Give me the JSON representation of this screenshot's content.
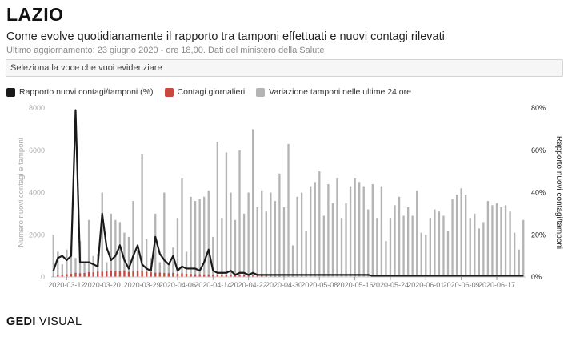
{
  "header": {
    "title": "LAZIO",
    "subtitle": "Come evolve quotidianamente il rapporto tra tamponi effettuati e nuovi contagi rilevati",
    "updated": "Ultimo aggiornamento: 23 giugno 2020 - ore 18,00. Dati del ministero della Salute"
  },
  "selector": {
    "placeholder": "Seleziona la voce che vuoi evidenziare"
  },
  "brand": {
    "strong": "GEDI",
    "light": " VISUAL"
  },
  "colors": {
    "line": "#1a1a1a",
    "contagi": "#c9473f",
    "tamponi": "#b4b4b4",
    "axis": "#999999"
  },
  "chart_data": {
    "type": "bar",
    "legend_position": "top-left",
    "grid": false,
    "dates": [
      "2020-03-09",
      "2020-03-10",
      "2020-03-11",
      "2020-03-12",
      "2020-03-13",
      "2020-03-14",
      "2020-03-15",
      "2020-03-16",
      "2020-03-17",
      "2020-03-18",
      "2020-03-19",
      "2020-03-20",
      "2020-03-21",
      "2020-03-22",
      "2020-03-23",
      "2020-03-24",
      "2020-03-25",
      "2020-03-26",
      "2020-03-27",
      "2020-03-28",
      "2020-03-29",
      "2020-03-30",
      "2020-03-31",
      "2020-04-01",
      "2020-04-02",
      "2020-04-03",
      "2020-04-04",
      "2020-04-05",
      "2020-04-06",
      "2020-04-07",
      "2020-04-08",
      "2020-04-09",
      "2020-04-10",
      "2020-04-11",
      "2020-04-12",
      "2020-04-13",
      "2020-04-14",
      "2020-04-15",
      "2020-04-16",
      "2020-04-17",
      "2020-04-18",
      "2020-04-19",
      "2020-04-20",
      "2020-04-21",
      "2020-04-22",
      "2020-04-23",
      "2020-04-24",
      "2020-04-25",
      "2020-04-26",
      "2020-04-27",
      "2020-04-28",
      "2020-04-29",
      "2020-04-30",
      "2020-05-01",
      "2020-05-02",
      "2020-05-03",
      "2020-05-04",
      "2020-05-05",
      "2020-05-06",
      "2020-05-07",
      "2020-05-08",
      "2020-05-09",
      "2020-05-10",
      "2020-05-11",
      "2020-05-12",
      "2020-05-13",
      "2020-05-14",
      "2020-05-15",
      "2020-05-16",
      "2020-05-17",
      "2020-05-18",
      "2020-05-19",
      "2020-05-20",
      "2020-05-21",
      "2020-05-22",
      "2020-05-23",
      "2020-05-24",
      "2020-05-25",
      "2020-05-26",
      "2020-05-27",
      "2020-05-28",
      "2020-05-29",
      "2020-05-30",
      "2020-05-31",
      "2020-06-01",
      "2020-06-02",
      "2020-06-03",
      "2020-06-04",
      "2020-06-05",
      "2020-06-06",
      "2020-06-07",
      "2020-06-08",
      "2020-06-09",
      "2020-06-10",
      "2020-06-11",
      "2020-06-12",
      "2020-06-13",
      "2020-06-14",
      "2020-06-15",
      "2020-06-16",
      "2020-06-17",
      "2020-06-18",
      "2020-06-19",
      "2020-06-20",
      "2020-06-21",
      "2020-06-22",
      "2020-06-23"
    ],
    "x_ticks": [
      "2020-03-12",
      "2020-03-20",
      "2020-03-29",
      "2020-04-06",
      "2020-04-14",
      "2020-04-22",
      "2020-04-30",
      "2020-05-08",
      "2020-05-16",
      "2020-05-24",
      "2020-06-01",
      "2020-06-09",
      "2020-06-17"
    ],
    "y_left": {
      "label": "Numero nuovi contagi e tamponi",
      "min": 0,
      "max": 8000,
      "ticks": [
        "0",
        "2000",
        "4000",
        "6000",
        "8000"
      ]
    },
    "y_right": {
      "label": "Rapporto nuovi contagi/tamponi",
      "min": 0,
      "max": 80,
      "ticks": [
        "0%",
        "20%",
        "40%",
        "60%",
        "80%"
      ]
    },
    "series": [
      {
        "name": "Variazione tamponi nelle ultime 24 ore",
        "kind": "bar",
        "values": [
          2000,
          1200,
          600,
          1300,
          1500,
          900,
          1700,
          700,
          2700,
          1000,
          1100,
          4000,
          700,
          3000,
          2700,
          2600,
          2100,
          1900,
          3600,
          1300,
          5800,
          1800,
          900,
          3000,
          700,
          4000,
          600,
          1400,
          2800,
          4700,
          1200,
          3800,
          3600,
          3700,
          3800,
          4100,
          1900,
          6400,
          2800,
          5900,
          4000,
          2700,
          6000,
          3000,
          4000,
          7000,
          3300,
          4100,
          3100,
          4000,
          3600,
          4900,
          3300,
          6300,
          1500,
          3800,
          4000,
          2200,
          4300,
          4500,
          5000,
          2900,
          4400,
          3500,
          4700,
          2800,
          3500,
          4300,
          4700,
          4500,
          4300,
          3200,
          4400,
          2800,
          4300,
          1700,
          2800,
          3400,
          3800,
          2900,
          3300,
          2900,
          4100,
          2100,
          2000,
          2800,
          3200,
          3100,
          2900,
          2200,
          3700,
          3900,
          4200,
          3900,
          2800,
          3000,
          2300,
          2600,
          3600,
          3400,
          3500,
          3300,
          3400,
          3100,
          2100,
          1300,
          2700
        ]
      },
      {
        "name": "Contagi giornalieri",
        "kind": "bar",
        "values": [
          40,
          90,
          110,
          130,
          150,
          200,
          180,
          190,
          230,
          220,
          260,
          250,
          270,
          300,
          280,
          270,
          310,
          240,
          260,
          290,
          270,
          250,
          220,
          200,
          210,
          190,
          180,
          200,
          160,
          170,
          150,
          140,
          130,
          130,
          120,
          120,
          110,
          110,
          100,
          100,
          90,
          85,
          80,
          75,
          70,
          65,
          60,
          55,
          50,
          45,
          40,
          40,
          35,
          30,
          30,
          28,
          25,
          22,
          20,
          20,
          18,
          16,
          15,
          14,
          12,
          12,
          10,
          10,
          10,
          8,
          8,
          8,
          8,
          7,
          7,
          6,
          6,
          6,
          5,
          5,
          5,
          5,
          5,
          5,
          5,
          5,
          5,
          6,
          6,
          6,
          6,
          6,
          7,
          7,
          8,
          7,
          6,
          6,
          5,
          5,
          5,
          6,
          6,
          7,
          7,
          6,
          5
        ]
      },
      {
        "name": "Rapporto nuovi contagi/tamponi (%)",
        "kind": "line",
        "values": [
          3,
          9,
          10,
          8,
          10,
          79,
          7,
          7,
          7,
          6,
          5,
          30,
          14,
          8,
          10,
          15,
          8,
          4,
          10,
          15,
          6,
          4,
          3,
          19,
          11,
          8,
          6,
          10,
          3,
          5,
          4,
          4,
          4,
          3,
          7,
          13,
          3,
          2,
          2,
          2,
          3,
          1,
          2,
          2,
          1,
          2,
          1,
          1,
          1,
          1,
          1,
          1,
          1,
          1,
          1,
          1,
          1,
          1,
          1,
          1,
          1,
          1,
          1,
          1,
          1,
          1,
          1,
          1,
          1,
          1,
          1,
          1,
          0.5,
          0.5,
          0.5,
          0.5,
          0.5,
          0.5,
          0.5,
          0.5,
          0.5,
          0.5,
          0.5,
          0.5,
          0.5,
          0.5,
          0.5,
          0.5,
          0.5,
          0.5,
          0.5,
          0.5,
          0.5,
          0.5,
          0.5,
          0.5,
          0.5,
          0.5,
          0.5,
          0.5,
          0.5,
          0.5,
          0.5,
          0.5,
          0.5,
          0.5,
          0.5
        ]
      }
    ]
  }
}
